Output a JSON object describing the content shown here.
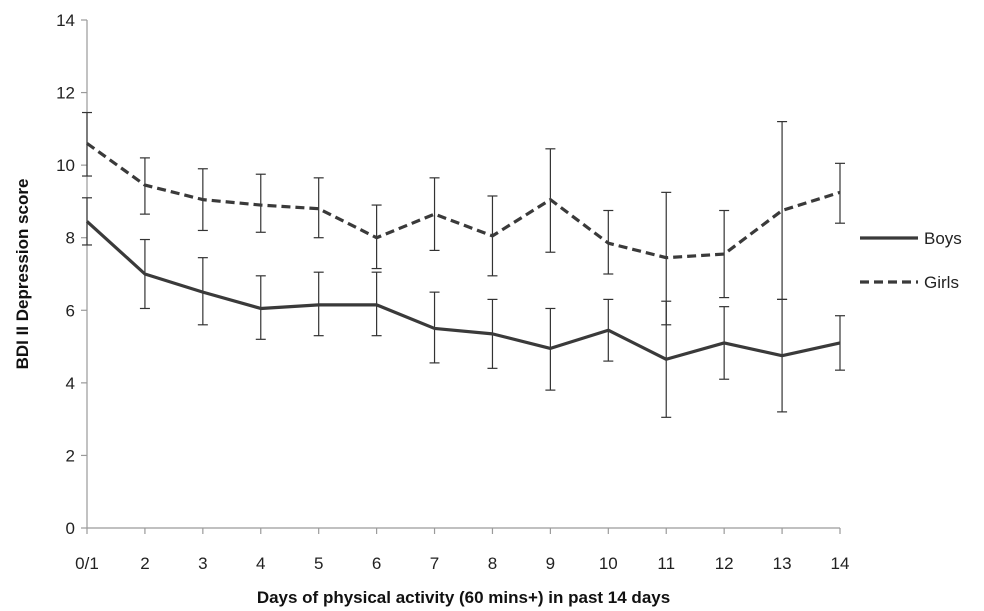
{
  "chart_data": {
    "type": "line",
    "xlabel": "Days of physical activity (60 mins+) in past 14 days",
    "ylabel": "BDI II Depression  score",
    "categories": [
      "0/1",
      "2",
      "3",
      "4",
      "5",
      "6",
      "7",
      "8",
      "9",
      "10",
      "11",
      "12",
      "13",
      "14"
    ],
    "ylim": [
      0,
      14
    ],
    "yticks": [
      0,
      2,
      4,
      6,
      8,
      10,
      12,
      14
    ],
    "grid": false,
    "legend_position": "right",
    "series": [
      {
        "name": "Boys",
        "style": "solid",
        "color": "#3a3a3a",
        "values": [
          8.45,
          7.0,
          6.5,
          6.05,
          6.15,
          6.15,
          5.5,
          5.35,
          4.95,
          5.45,
          4.65,
          5.1,
          4.75,
          5.1
        ],
        "err_low": [
          7.8,
          6.05,
          5.6,
          5.2,
          5.3,
          5.3,
          4.55,
          4.4,
          3.8,
          4.6,
          3.05,
          4.1,
          3.2,
          4.35
        ],
        "err_high": [
          9.1,
          7.95,
          7.45,
          6.95,
          7.05,
          7.05,
          6.5,
          6.3,
          6.05,
          6.3,
          6.25,
          6.1,
          6.3,
          5.85
        ]
      },
      {
        "name": "Girls",
        "style": "dashed",
        "color": "#3a3a3a",
        "values": [
          10.6,
          9.45,
          9.05,
          8.9,
          8.8,
          8.0,
          8.65,
          8.05,
          9.05,
          7.85,
          7.45,
          7.55,
          8.75,
          9.25
        ],
        "err_low": [
          9.7,
          8.65,
          8.2,
          8.15,
          8.0,
          7.15,
          7.65,
          6.95,
          7.6,
          7.0,
          5.6,
          6.35,
          6.3,
          8.4
        ],
        "err_high": [
          11.45,
          10.2,
          9.9,
          9.75,
          9.65,
          8.9,
          9.65,
          9.15,
          10.45,
          8.75,
          9.25,
          8.75,
          11.2,
          10.05
        ]
      }
    ]
  }
}
